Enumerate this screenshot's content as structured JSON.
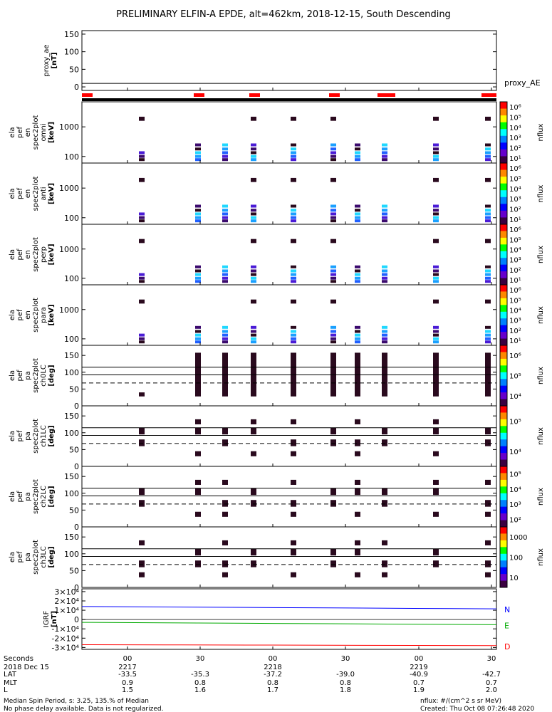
{
  "title": "PRELIMINARY ELFIN-A EPDE, alt=462km, 2018-12-15, South Descending",
  "chart_data": [
    {
      "type": "line",
      "ylabel_lines": [
        "proxy_ae",
        "[nT]"
      ],
      "yticks": [
        0,
        50,
        100,
        150
      ],
      "ylim": [
        -10,
        160
      ],
      "right_label": "proxy_AE",
      "series": [
        {
          "values": [
            10,
            10
          ]
        }
      ]
    },
    {
      "type": "heatmap",
      "ylabel_lines": [
        "ela",
        "pef",
        "en",
        "spec2plot",
        "omni",
        "[keV]"
      ],
      "yticks": [
        100,
        1000
      ],
      "ylim": [
        60,
        7000
      ],
      "log_y": true,
      "colorbar_ticks": [
        "10¹",
        "10²",
        "10³",
        "10⁴",
        "10⁵",
        "10⁶"
      ],
      "colorbar_label": "nflux"
    },
    {
      "type": "heatmap",
      "ylabel_lines": [
        "ela",
        "pef",
        "en",
        "spec2plot",
        "anti",
        "[keV]"
      ],
      "yticks": [
        100,
        1000
      ],
      "ylim": [
        60,
        7000
      ],
      "log_y": true,
      "colorbar_ticks": [
        "10¹",
        "10²",
        "10³",
        "10⁴",
        "10⁵",
        "10⁶"
      ],
      "colorbar_label": "nflux"
    },
    {
      "type": "heatmap",
      "ylabel_lines": [
        "ela",
        "pef",
        "en",
        "spec2plot",
        "perp",
        "[keV]"
      ],
      "yticks": [
        100,
        1000
      ],
      "ylim": [
        60,
        7000
      ],
      "log_y": true,
      "colorbar_ticks": [
        "10¹",
        "10²",
        "10³",
        "10⁴",
        "10⁵",
        "10⁶"
      ],
      "colorbar_label": "nflux"
    },
    {
      "type": "heatmap",
      "ylabel_lines": [
        "ela",
        "pef",
        "en",
        "spec2plot",
        "para",
        "[keV]"
      ],
      "yticks": [
        100,
        1000
      ],
      "ylim": [
        60,
        7000
      ],
      "log_y": true,
      "colorbar_ticks": [
        "10¹",
        "10²",
        "10³",
        "10⁴",
        "10⁵",
        "10⁶"
      ],
      "colorbar_label": "nflux"
    },
    {
      "type": "heatmap",
      "ylabel_lines": [
        "ela",
        "pef",
        "pa",
        "spec2plot",
        "ch0LC",
        "[deg]"
      ],
      "yticks": [
        0,
        50,
        100,
        150
      ],
      "ylim": [
        0,
        180
      ],
      "colorbar_ticks": [
        "10⁴",
        "10⁵",
        "10⁶"
      ],
      "colorbar_label": "nflux"
    },
    {
      "type": "heatmap",
      "ylabel_lines": [
        "ela",
        "pef",
        "pa",
        "spec2plot",
        "ch1LC",
        "[deg]"
      ],
      "yticks": [
        0,
        50,
        100,
        150
      ],
      "ylim": [
        0,
        180
      ],
      "colorbar_ticks": [
        "10⁴",
        "10⁵"
      ],
      "colorbar_label": "nflux"
    },
    {
      "type": "heatmap",
      "ylabel_lines": [
        "ela",
        "pef",
        "pa",
        "spec2plot",
        "ch2LC",
        "[deg]"
      ],
      "yticks": [
        0,
        50,
        100,
        150
      ],
      "ylim": [
        0,
        180
      ],
      "colorbar_ticks": [
        "10²",
        "10³",
        "10⁴",
        "10⁵"
      ],
      "colorbar_label": "nflux"
    },
    {
      "type": "heatmap",
      "ylabel_lines": [
        "ela",
        "pef",
        "pa",
        "spec2plot",
        "ch3LC",
        "[deg]"
      ],
      "yticks": [
        0,
        50,
        100,
        150
      ],
      "ylim": [
        0,
        180
      ],
      "colorbar_ticks": [
        "10",
        "100",
        "1000"
      ],
      "colorbar_label": "nflux"
    },
    {
      "type": "line",
      "ylabel_lines": [
        "IGRF",
        "[nT]"
      ],
      "ytick_labels": [
        "3×10⁴",
        "2×10⁴",
        "1×10⁴",
        "0",
        "-1×10⁴",
        "-2×10⁴",
        "-3×10⁴"
      ],
      "yticks": [
        30000,
        20000,
        10000,
        0,
        -10000,
        -20000,
        -30000
      ],
      "ylim": [
        -32000,
        33000
      ],
      "series": [
        {
          "name": "N",
          "color": "#0000ff",
          "values": [
            14000,
            13500,
            13000,
            12500,
            12000,
            11500
          ]
        },
        {
          "name": "E",
          "color": "#00aa00",
          "values": [
            -3000,
            -3500,
            -4000,
            -4500,
            -5000,
            -5500
          ]
        },
        {
          "name": "D",
          "color": "#ff0000",
          "values": [
            -27000,
            -27200,
            -27400,
            -27600,
            -27800,
            -28000
          ]
        }
      ]
    }
  ],
  "xaxis": {
    "row_labels": [
      "Seconds",
      "2018 Dec 15",
      "LAT",
      "MLT",
      "L"
    ],
    "ticks": [
      {
        "sec": "00",
        "min": "2217",
        "lat": "-33.5",
        "mlt": "0.9",
        "l": "1.5"
      },
      {
        "sec": "30",
        "min": "",
        "lat": "-35.3",
        "mlt": "0.8",
        "l": "1.6"
      },
      {
        "sec": "00",
        "min": "2218",
        "lat": "-37.2",
        "mlt": "0.8",
        "l": "1.7"
      },
      {
        "sec": "30",
        "min": "",
        "lat": "-39.0",
        "mlt": "0.8",
        "l": "1.8"
      },
      {
        "sec": "00",
        "min": "2219",
        "lat": "-40.9",
        "mlt": "0.7",
        "l": "1.9"
      },
      {
        "sec": "30",
        "min": "",
        "lat": "-42.7",
        "mlt": "0.7",
        "l": "2.0"
      }
    ]
  },
  "footer": {
    "left1": "Median Spin Period, s: 3.25, 135.% of Median",
    "left2": "No phase delay available. Data is not regularized.",
    "right1": "nflux: #/(cm^2 s sr MeV)",
    "right2": "Created: Thu Oct 08 07:26:48 2020"
  },
  "colors": {
    "red_bar": "#ff0000",
    "dark_cell": "#2a0a1e"
  }
}
